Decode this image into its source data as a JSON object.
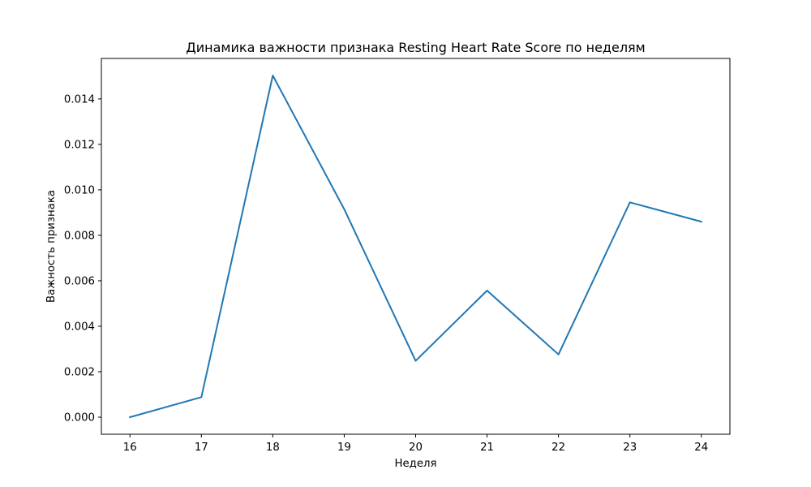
{
  "chart_data": {
    "type": "line",
    "title": "Динамика важности признака Resting Heart Rate Score по неделям",
    "xlabel": "Неделя",
    "ylabel": "Важность признака",
    "x": [
      16,
      17,
      18,
      19,
      20,
      21,
      22,
      23,
      24
    ],
    "series": [
      {
        "values": [
          0.0,
          0.00088,
          0.01503,
          0.00915,
          0.00248,
          0.00557,
          0.00276,
          0.00945,
          0.0086
        ]
      }
    ],
    "xlim": [
      15.6,
      24.4
    ],
    "ylim": [
      -0.00075,
      0.01578
    ],
    "xticks": [
      "16",
      "17",
      "18",
      "19",
      "20",
      "21",
      "22",
      "23",
      "24"
    ],
    "yticks": [
      "0.000",
      "0.002",
      "0.004",
      "0.006",
      "0.008",
      "0.010",
      "0.012",
      "0.014"
    ],
    "grid": false,
    "line_color": "#1f77b4"
  }
}
